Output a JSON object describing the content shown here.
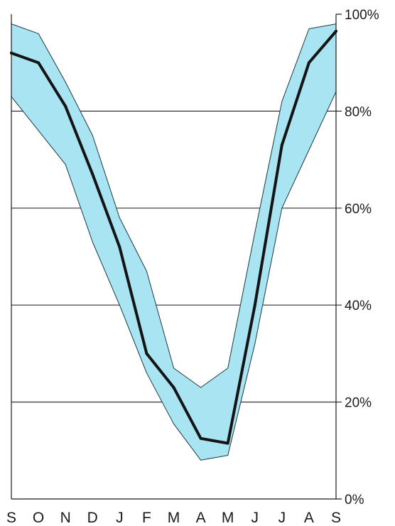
{
  "chart_data": {
    "type": "area",
    "title": "",
    "xlabel": "",
    "ylabel": "",
    "categories": [
      "S",
      "O",
      "N",
      "D",
      "J",
      "F",
      "M",
      "A",
      "M",
      "J",
      "J",
      "A",
      "S"
    ],
    "y_tick_labels": [
      "0%",
      "20%",
      "40%",
      "60%",
      "80%",
      "100%"
    ],
    "y_ticks": [
      0,
      20,
      40,
      60,
      80,
      100
    ],
    "ylim": [
      0,
      100
    ],
    "y_axis_side": "right",
    "grid": true,
    "legend": "none",
    "series": [
      {
        "values": [
          92,
          90,
          81,
          67,
          52,
          30,
          23,
          12.5,
          11.5,
          40,
          73,
          90,
          96.5
        ]
      }
    ],
    "band": {
      "upper": [
        98,
        96,
        86,
        75,
        58,
        47,
        27,
        23,
        27,
        55,
        82,
        97,
        98
      ],
      "lower": [
        83,
        76,
        69,
        53,
        40,
        26,
        15.5,
        8,
        9,
        32,
        60,
        72,
        84
      ]
    },
    "colors": {
      "band_fill": "#a8e4f2",
      "band_edge": "#1c3940",
      "line": "#141414",
      "grid": "#333333",
      "axis": "#1a1a1a"
    }
  }
}
